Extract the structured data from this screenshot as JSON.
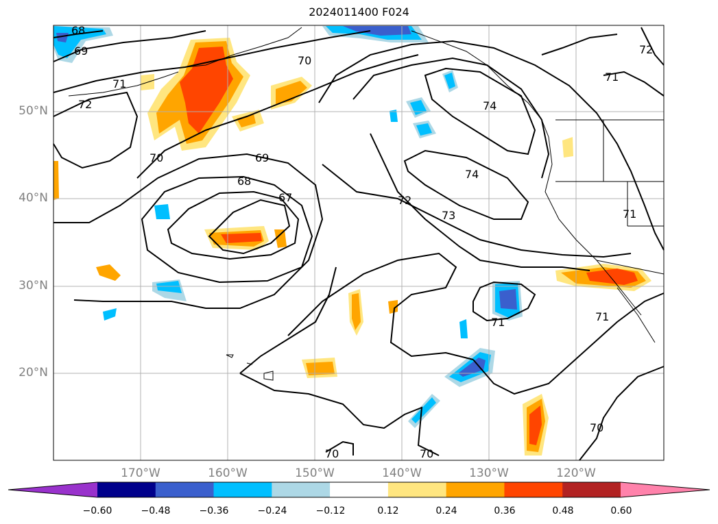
{
  "title": "2024011400 F024",
  "latitude_labels": [
    "50°N",
    "40°N",
    "30°N",
    "20°N"
  ],
  "longitude_labels": [
    "170°W",
    "160°W",
    "150°W",
    "140°W",
    "130°W",
    "120°W"
  ],
  "contour_labels": [
    "68",
    "69",
    "70",
    "71",
    "72",
    "70",
    "69",
    "68",
    "67",
    "72",
    "73",
    "74",
    "74",
    "71",
    "71",
    "71",
    "70",
    "70",
    "70",
    "72",
    "71"
  ],
  "colorbar": {
    "ticks": [
      "−0.60",
      "−0.48",
      "−0.36",
      "−0.24",
      "−0.12",
      "0.12",
      "0.24",
      "0.36",
      "0.48",
      "0.60"
    ],
    "colors": [
      "#9932cc",
      "#00008b",
      "#3a5fcd",
      "#00bfff",
      "#add8e6",
      "#ffffff",
      "#ffe680",
      "#ffa500",
      "#ff4500",
      "#b22222",
      "#ff82ab"
    ]
  },
  "map_colors": {
    "positive_light": "#ffe680",
    "positive_mid": "#ffa500",
    "positive_strong": "#ff4500",
    "negative_light": "#add8e6",
    "negative_mid": "#00bfff",
    "negative_strong": "#3a5fcd",
    "contour": "#000000",
    "grid": "#b0b0b0"
  }
}
